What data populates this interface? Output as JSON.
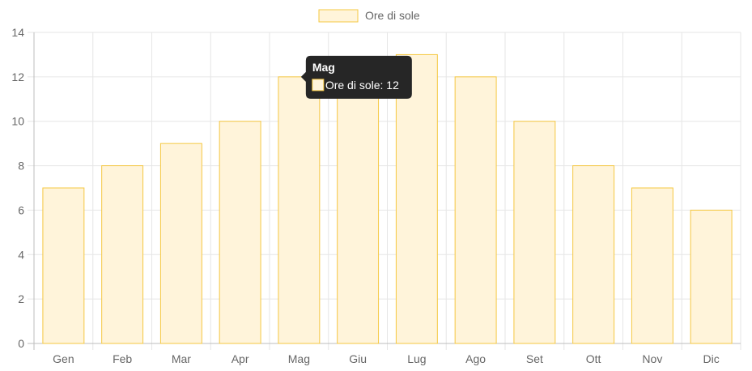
{
  "chart_data": {
    "type": "bar",
    "categories": [
      "Gen",
      "Feb",
      "Mar",
      "Apr",
      "Mag",
      "Giu",
      "Lug",
      "Ago",
      "Set",
      "Ott",
      "Nov",
      "Dic"
    ],
    "series": [
      {
        "name": "Ore di sole",
        "values": [
          7,
          8,
          9,
          10,
          12,
          12,
          13,
          12,
          10,
          8,
          7,
          6
        ]
      }
    ],
    "ylim": [
      0,
      14
    ],
    "yticks": [
      0,
      2,
      4,
      6,
      8,
      10,
      12,
      14
    ],
    "grid": true,
    "legend_position": "top",
    "colors": {
      "bar_fill": "#fff4da",
      "bar_border": "#f5c842",
      "grid": "#e6e6e6",
      "axis": "#bdbdbd",
      "tooltip_bg": "#262626"
    }
  },
  "tooltip": {
    "title": "Mag",
    "label": "Ore di sole: 12",
    "category_index": 4
  }
}
